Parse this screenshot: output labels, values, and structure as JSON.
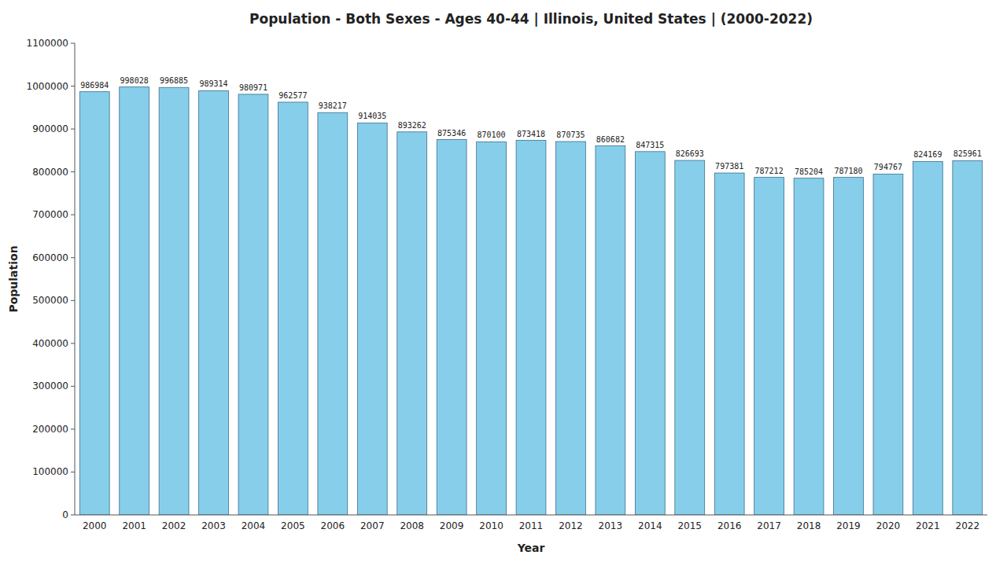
{
  "chart_data": {
    "type": "bar",
    "title": "Population - Both Sexes - Ages 40-44 | Illinois, United States |  (2000-2022)",
    "xlabel": "Year",
    "ylabel": "Population",
    "categories": [
      "2000",
      "2001",
      "2002",
      "2003",
      "2004",
      "2005",
      "2006",
      "2007",
      "2008",
      "2009",
      "2010",
      "2011",
      "2012",
      "2013",
      "2014",
      "2015",
      "2016",
      "2017",
      "2018",
      "2019",
      "2020",
      "2021",
      "2022"
    ],
    "values": [
      986984,
      998028,
      996885,
      989314,
      980971,
      962577,
      938217,
      914035,
      893262,
      875346,
      870100,
      873418,
      870735,
      860682,
      847315,
      826693,
      797381,
      787212,
      785204,
      787180,
      794767,
      824169,
      825961
    ],
    "color": "#87ceeb",
    "ylim": [
      0,
      1100000
    ],
    "yticks": [
      0,
      100000,
      200000,
      300000,
      400000,
      500000,
      600000,
      700000,
      800000,
      900000,
      1000000,
      1100000
    ],
    "grid": false,
    "data_labels": true
  }
}
